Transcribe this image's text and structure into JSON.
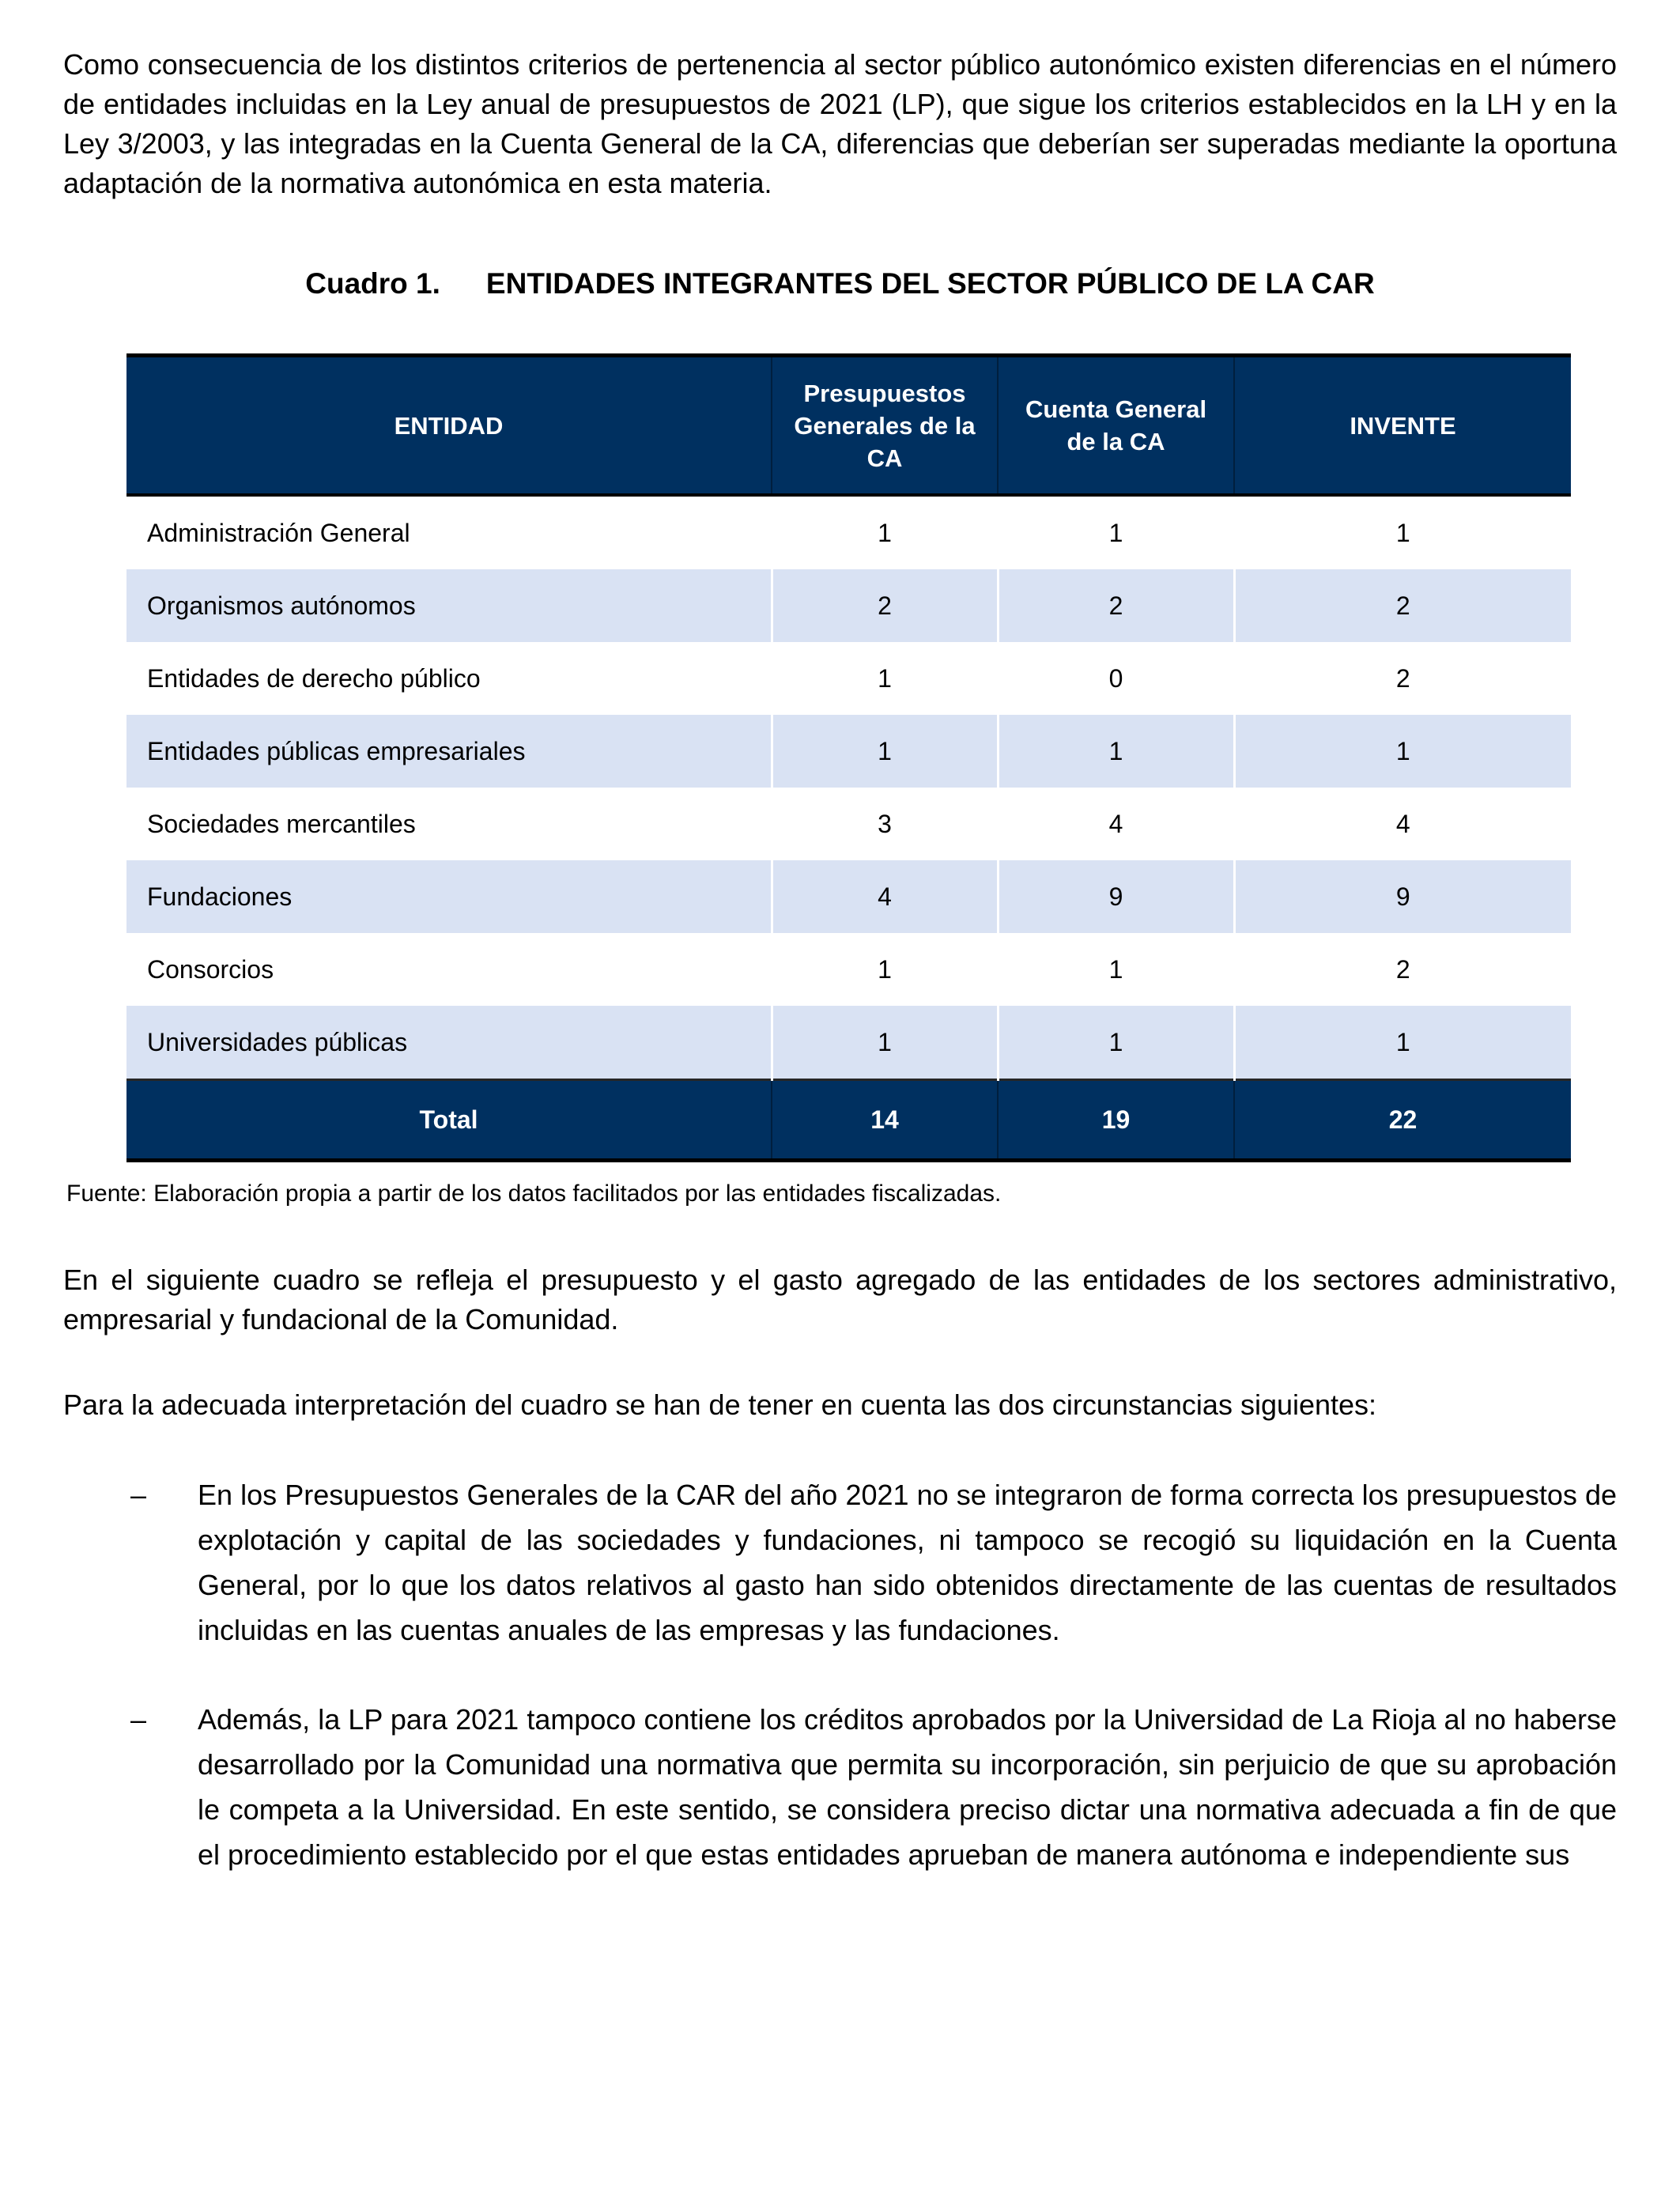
{
  "document": {
    "intro_paragraph": "Como consecuencia de los distintos criterios de pertenencia al sector público autonómico existen diferencias en el número de entidades incluidas en la Ley anual de presupuestos de 2021 (LP), que sigue los criterios establecidos en la LH y en la Ley 3/2003, y las integradas en la Cuenta General de la CA, diferencias que deberían ser superadas mediante la oportuna adaptación de la normativa autonómica en esta materia.",
    "table_caption": {
      "number": "Cuadro 1.",
      "title": "ENTIDADES INTEGRANTES DEL SECTOR PÚBLICO DE LA CAR"
    },
    "table": {
      "columns": [
        "ENTIDAD",
        "Presupuestos Generales de la CA",
        "Cuenta General de la CA",
        "INVENTE"
      ],
      "rows": [
        {
          "entity": "Administración General",
          "values": [
            "1",
            "1",
            "1"
          ]
        },
        {
          "entity": "Organismos autónomos",
          "values": [
            "2",
            "2",
            "2"
          ]
        },
        {
          "entity": "Entidades de derecho público",
          "values": [
            "1",
            "0",
            "2"
          ]
        },
        {
          "entity": "Entidades públicas empresariales",
          "values": [
            "1",
            "1",
            "1"
          ]
        },
        {
          "entity": "Sociedades mercantiles",
          "values": [
            "3",
            "4",
            "4"
          ]
        },
        {
          "entity": "Fundaciones",
          "values": [
            "4",
            "9",
            "9"
          ]
        },
        {
          "entity": "Consorcios",
          "values": [
            "1",
            "1",
            "2"
          ]
        },
        {
          "entity": "Universidades públicas",
          "values": [
            "1",
            "1",
            "1"
          ]
        }
      ],
      "total": {
        "label": "Total",
        "values": [
          "14",
          "19",
          "22"
        ]
      }
    },
    "source_note": "Fuente: Elaboración propia a partir de los datos facilitados por las entidades fiscalizadas.",
    "paragraph_following": "En el siguiente cuadro se refleja el presupuesto y el gasto agregado de las entidades de los sectores administrativo, empresarial y fundacional de la Comunidad.",
    "paragraph_interpretation": "Para la adecuada interpretación del cuadro se han de tener en cuenta las dos circunstancias siguientes:",
    "bullets": [
      {
        "marker": "–",
        "text": "En los Presupuestos Generales de la CAR del año 2021 no se integraron de forma correcta los presupuestos de explotación y capital de las sociedades y fundaciones, ni tampoco se recogió su liquidación en la Cuenta General, por lo que los datos relativos al gasto han sido obtenidos directamente de las cuentas de resultados incluidas en las cuentas anuales de las empresas y las fundaciones."
      },
      {
        "marker": "–",
        "text": "Además, la LP para 2021 tampoco contiene los créditos aprobados por la Universidad de La Rioja al no haberse desarrollado por la Comunidad una normativa que permita su incorporación, sin perjuicio de que su aprobación le competa a la Universidad. En este sentido, se considera preciso dictar una normativa adecuada a fin de que el procedimiento establecido por el que estas entidades aprueban de manera autónoma e independiente sus"
      }
    ],
    "colors": {
      "header_bg": "#003060",
      "band_bg": "#D9E2F3",
      "header_text": "#FFFFFF",
      "body_text": "#000000",
      "border": "#000000"
    }
  }
}
